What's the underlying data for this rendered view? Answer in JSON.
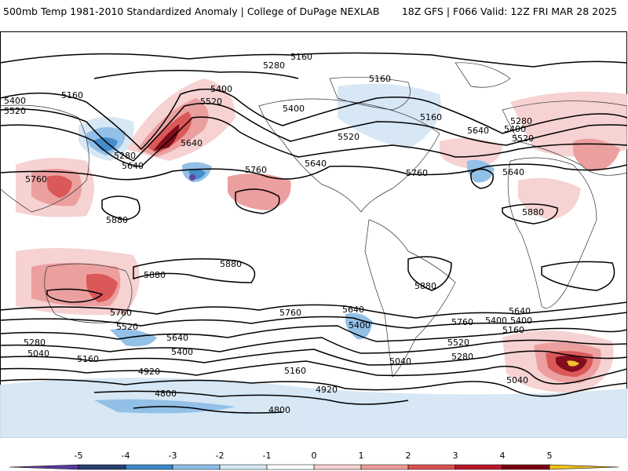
{
  "header": {
    "title": "500mb Temp 1981-2010 Standardized Anomaly | College of DuPage NEXLAB",
    "run_info": "18Z GFS | F066 Valid: 12Z FRI MAR 28 2025"
  },
  "colorbar": {
    "ticks": [
      "-5",
      "-4",
      "-3",
      "-2",
      "-1",
      "0",
      "1",
      "2",
      "3",
      "4",
      "5"
    ],
    "colors": [
      "#5a3a9a",
      "#2a3f6e",
      "#3a86c8",
      "#8dbde6",
      "#d5e6f4",
      "#ffffff",
      "#f6d0d0",
      "#eb9a9a",
      "#d95050",
      "#b8182a",
      "#7a0010",
      "#f0c020"
    ]
  },
  "contour_labels": [
    "5160",
    "5280",
    "5160",
    "5400",
    "5520",
    "5400",
    "5160",
    "5520",
    "5280",
    "5640",
    "5400",
    "5520",
    "5640",
    "5640",
    "5760",
    "5760",
    "5640",
    "5520",
    "5400",
    "5280",
    "5160",
    "5640",
    "5760",
    "5880",
    "5880",
    "5880",
    "5880",
    "5880",
    "5760",
    "5640",
    "5520",
    "5400",
    "5280",
    "5160",
    "5040",
    "4920",
    "4800",
    "5400",
    "5640",
    "5760",
    "5400",
    "5520",
    "5280",
    "5040",
    "5160",
    "4920",
    "4800",
    "5640",
    "5400",
    "5160",
    "5040",
    "5760"
  ],
  "colors": {
    "contour": "#000000",
    "coast": "#333333",
    "border": "#666666"
  }
}
